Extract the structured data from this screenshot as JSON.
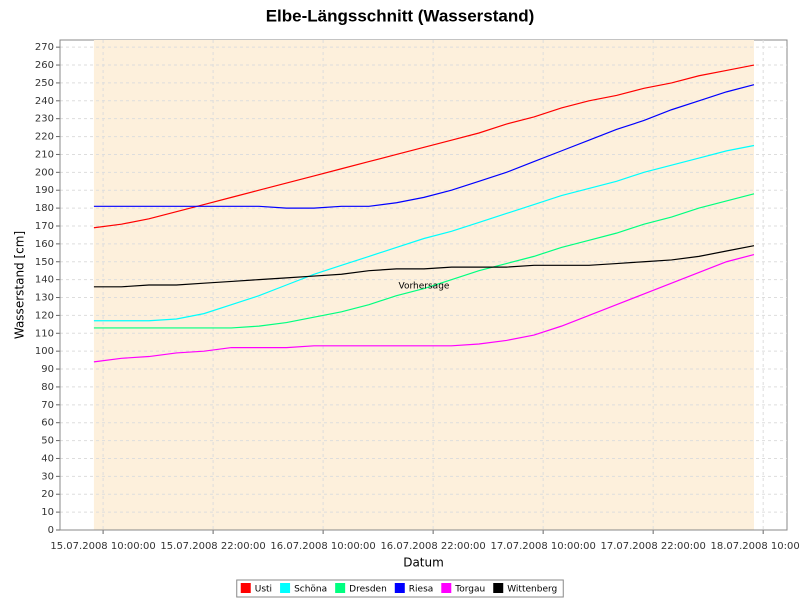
{
  "chart_data": {
    "type": "line",
    "title": "Elbe-Längsschnitt (Wasserstand)",
    "x_label": "Datum",
    "y_label": "Wasserstand [cm]",
    "annotation": "Vorhersage",
    "shaded_range": [
      9,
      81
    ],
    "shaded_color": "#fdf0dc",
    "xlim": [
      5.3,
      84.6
    ],
    "ylim": [
      0,
      274
    ],
    "xticks": [
      {
        "value": 10,
        "label": "15.07.2008 10:00:00"
      },
      {
        "value": 22,
        "label": "15.07.2008 22:00:00"
      },
      {
        "value": 34,
        "label": "16.07.2008 10:00:00"
      },
      {
        "value": 46,
        "label": "16.07.2008 22:00:00"
      },
      {
        "value": 58,
        "label": "17.07.2008 10:00:00"
      },
      {
        "value": 70,
        "label": "17.07.2008 22:00:00"
      },
      {
        "value": 82,
        "label": "18.07.2008 10:00:00"
      }
    ],
    "yticks": [
      0,
      10,
      20,
      30,
      40,
      50,
      60,
      70,
      80,
      90,
      100,
      110,
      120,
      130,
      140,
      150,
      160,
      170,
      180,
      190,
      200,
      210,
      220,
      230,
      240,
      250,
      260,
      270
    ],
    "grid": true,
    "x": [
      9,
      12,
      15,
      18,
      21,
      24,
      27,
      30,
      33,
      36,
      39,
      42,
      45,
      48,
      51,
      54,
      57,
      60,
      63,
      66,
      69,
      72,
      75,
      78,
      81
    ],
    "series": [
      {
        "name": "Usti",
        "color": "#ff0000",
        "values": [
          169,
          171,
          174,
          178,
          182,
          186,
          190,
          194,
          198,
          202,
          206,
          210,
          214,
          218,
          222,
          227,
          231,
          236,
          240,
          243,
          247,
          250,
          254,
          257,
          260
        ]
      },
      {
        "name": "Schöna",
        "color": "#00ffff",
        "values": [
          117,
          117,
          117,
          118,
          121,
          126,
          131,
          137,
          143,
          148,
          153,
          158,
          163,
          167,
          172,
          177,
          182,
          187,
          191,
          195,
          200,
          204,
          208,
          212,
          215
        ]
      },
      {
        "name": "Dresden",
        "color": "#00ff80",
        "values": [
          113,
          113,
          113,
          113,
          113,
          113,
          114,
          116,
          119,
          122,
          126,
          131,
          135,
          140,
          145,
          149,
          153,
          158,
          162,
          166,
          171,
          175,
          180,
          184,
          188
        ]
      },
      {
        "name": "Riesa",
        "color": "#0000ff",
        "values": [
          181,
          181,
          181,
          181,
          181,
          181,
          181,
          180,
          180,
          181,
          181,
          183,
          186,
          190,
          195,
          200,
          206,
          212,
          218,
          224,
          229,
          235,
          240,
          245,
          249
        ]
      },
      {
        "name": "Torgau",
        "color": "#ff00ff",
        "values": [
          94,
          96,
          97,
          99,
          100,
          102,
          102,
          102,
          103,
          103,
          103,
          103,
          103,
          103,
          104,
          106,
          109,
          114,
          120,
          126,
          132,
          138,
          144,
          150,
          154
        ]
      },
      {
        "name": "Wittenberg",
        "color": "#000000",
        "values": [
          136,
          136,
          137,
          137,
          138,
          139,
          140,
          141,
          142,
          143,
          145,
          146,
          146,
          147,
          147,
          147,
          148,
          148,
          148,
          149,
          150,
          151,
          153,
          156,
          159
        ]
      }
    ]
  }
}
